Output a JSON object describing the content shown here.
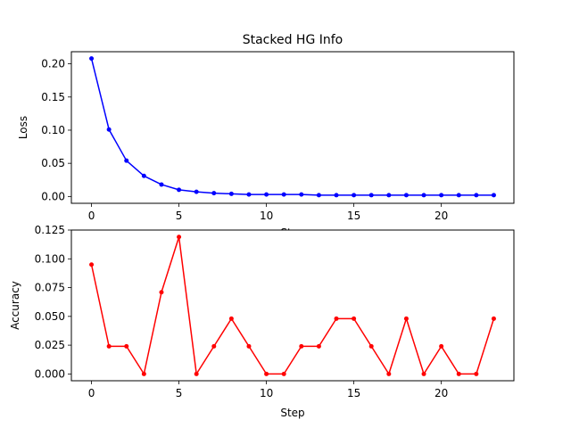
{
  "chart_data": [
    {
      "type": "line",
      "title": "Stacked HG Info",
      "xlabel": "Step",
      "ylabel": "Loss",
      "x": [
        0,
        1,
        2,
        3,
        4,
        5,
        6,
        7,
        8,
        9,
        10,
        11,
        12,
        13,
        14,
        15,
        16,
        17,
        18,
        19,
        20,
        21,
        22,
        23
      ],
      "series": [
        {
          "color": "#0000ff",
          "values": [
            0.208,
            0.101,
            0.054,
            0.031,
            0.018,
            0.01,
            0.007,
            0.005,
            0.004,
            0.003,
            0.003,
            0.003,
            0.003,
            0.002,
            0.002,
            0.002,
            0.002,
            0.002,
            0.002,
            0.002,
            0.002,
            0.002,
            0.002,
            0.002
          ]
        }
      ],
      "xlim": [
        -1.15,
        24.15
      ],
      "ylim": [
        -0.0103,
        0.2183
      ],
      "xticks": [
        0,
        5,
        10,
        15,
        20
      ],
      "yticks": [
        0.0,
        0.05,
        0.1,
        0.15,
        0.2
      ],
      "ytick_labels": [
        "0.00",
        "0.05",
        "0.10",
        "0.15",
        "0.20"
      ],
      "grid": false
    },
    {
      "type": "line",
      "title": "",
      "xlabel": "Step",
      "ylabel": "Accuracy",
      "x": [
        0,
        1,
        2,
        3,
        4,
        5,
        6,
        7,
        8,
        9,
        10,
        11,
        12,
        13,
        14,
        15,
        16,
        17,
        18,
        19,
        20,
        21,
        22,
        23
      ],
      "series": [
        {
          "color": "#ff0000",
          "values": [
            0.095,
            0.024,
            0.024,
            0.0,
            0.071,
            0.119,
            0.0,
            0.024,
            0.048,
            0.024,
            0.0,
            0.0,
            0.024,
            0.024,
            0.048,
            0.048,
            0.024,
            0.0,
            0.048,
            0.0,
            0.024,
            0.0,
            0.0,
            0.048
          ]
        }
      ],
      "xlim": [
        -1.15,
        24.15
      ],
      "ylim": [
        -0.0059,
        0.125
      ],
      "xticks": [
        0,
        5,
        10,
        15,
        20
      ],
      "yticks": [
        0.0,
        0.025,
        0.05,
        0.075,
        0.1,
        0.125
      ],
      "ytick_labels": [
        "0.000",
        "0.025",
        "0.050",
        "0.075",
        "0.100",
        "0.125"
      ],
      "grid": false
    }
  ]
}
